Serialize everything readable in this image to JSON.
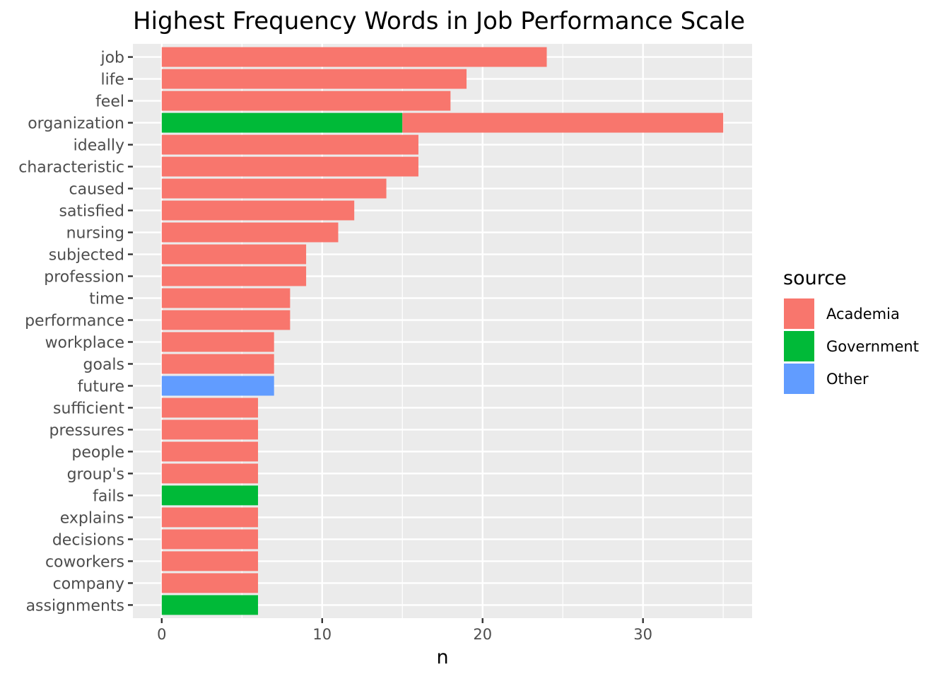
{
  "chart_data": {
    "type": "bar",
    "orientation": "horizontal",
    "stacked": true,
    "title": "Highest Frequency Words in Job Performance Scale",
    "xlabel": "n",
    "ylabel": "",
    "xlim": [
      -1.8,
      36.8
    ],
    "x_ticks": [
      0,
      10,
      20,
      30
    ],
    "x_tick_labels": [
      "0",
      "10",
      "20",
      "30"
    ],
    "grid": true,
    "legend_position": "right",
    "legend": {
      "title": "source",
      "items": [
        {
          "name": "Academia",
          "color": "#F8766D"
        },
        {
          "name": "Government",
          "color": "#00BA38"
        },
        {
          "name": "Other",
          "color": "#619CFF"
        }
      ]
    },
    "categories": [
      "job",
      "life",
      "feel",
      "organization",
      "ideally",
      "characteristic",
      "caused",
      "satisfied",
      "nursing",
      "subjected",
      "profession",
      "time",
      "performance",
      "workplace",
      "goals",
      "future",
      "sufficient",
      "pressures",
      "people",
      "group's",
      "fails",
      "explains",
      "decisions",
      "coworkers",
      "company",
      "assignments"
    ],
    "series": [
      {
        "name": "Academia",
        "color": "#F8766D",
        "values": [
          24,
          19,
          18,
          20,
          16,
          16,
          14,
          12,
          11,
          9,
          9,
          8,
          8,
          7,
          7,
          0,
          6,
          6,
          6,
          6,
          0,
          6,
          6,
          6,
          6,
          0
        ]
      },
      {
        "name": "Government",
        "color": "#00BA38",
        "values": [
          0,
          0,
          0,
          15,
          0,
          0,
          0,
          0,
          0,
          0,
          0,
          0,
          0,
          0,
          0,
          0,
          0,
          0,
          0,
          0,
          6,
          0,
          0,
          0,
          0,
          6
        ]
      },
      {
        "name": "Other",
        "color": "#619CFF",
        "values": [
          0,
          0,
          0,
          0,
          0,
          0,
          0,
          0,
          0,
          0,
          0,
          0,
          0,
          0,
          0,
          7,
          0,
          0,
          0,
          0,
          0,
          0,
          0,
          0,
          0,
          0
        ]
      }
    ],
    "stack_order": [
      "Government",
      "Other",
      "Academia"
    ]
  }
}
